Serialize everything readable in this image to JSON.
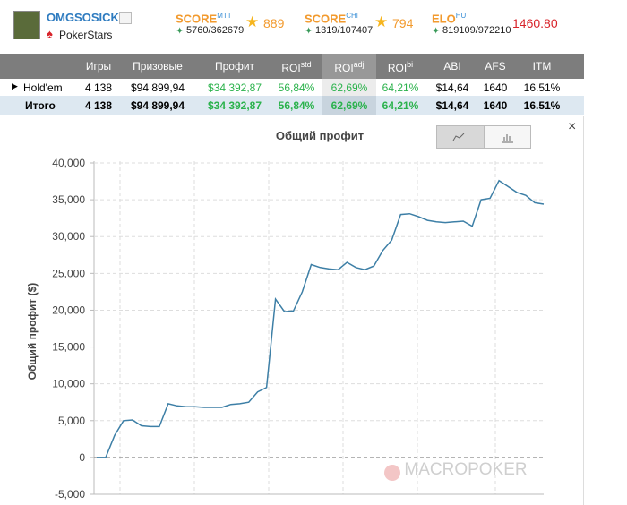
{
  "player": {
    "name": "OMGSOSICK",
    "site": "PokerStars"
  },
  "scores": [
    {
      "label": "SCORE",
      "sup": "MTT",
      "rank": "5760/362679",
      "value": "889"
    },
    {
      "label": "SCORE",
      "sup": "СНГ",
      "rank": "1319/107407",
      "value": "794"
    },
    {
      "label": "ELO",
      "sup": "HU",
      "rank": "819109/972210",
      "value": "1460.80"
    }
  ],
  "table": {
    "headers": [
      {
        "text": "Игры"
      },
      {
        "text": "Призовые"
      },
      {
        "text": "Профит"
      },
      {
        "text": "ROI",
        "sup": "std"
      },
      {
        "text": "ROI",
        "sup": "adj"
      },
      {
        "text": "ROI",
        "sup": "bi"
      },
      {
        "text": "ABI"
      },
      {
        "text": "AFS"
      },
      {
        "text": "ITM"
      }
    ],
    "rows": [
      [
        "Hold'em",
        "4 138",
        "$94 899,94",
        "$34 392,87",
        "56,84%",
        "62,69%",
        "64,21%",
        "$14,64",
        "1640",
        "16.51%"
      ],
      [
        "Итого",
        "4 138",
        "$94 899,94",
        "$34 392,87",
        "56,84%",
        "62,69%",
        "64,21%",
        "$14,64",
        "1640",
        "16.51%"
      ]
    ]
  },
  "chart_data": {
    "type": "line",
    "title": "Общий профит",
    "y_label": "Общий профит ($)",
    "values": [
      0,
      0,
      3000,
      5000,
      5100,
      4300,
      4200,
      4200,
      7300,
      7000,
      6900,
      6900,
      6800,
      6800,
      6800,
      7200,
      7300,
      7500,
      8900,
      9500,
      21500,
      19800,
      19900,
      22500,
      26200,
      25800,
      25600,
      25500,
      26500,
      25800,
      25500,
      26000,
      28100,
      29500,
      33000,
      33100,
      32700,
      32200,
      32000,
      31900,
      32000,
      32100,
      31400,
      35000,
      35200,
      37600,
      36800,
      36000,
      35600,
      34600,
      34400
    ],
    "color": "#3d7fa6",
    "ylim": [
      -5000,
      40000
    ],
    "yticks": [
      {
        "value": -5000,
        "label": "-5,000"
      },
      0,
      {
        "value": 5000,
        "label": "5,000"
      },
      {
        "value": 10000,
        "label": "10,000"
      },
      {
        "value": 15000,
        "label": "15,000"
      },
      {
        "value": 20000,
        "label": "20,000"
      },
      {
        "value": 25000,
        "label": "25,000"
      },
      {
        "value": 30000,
        "label": "30,000"
      },
      {
        "value": 35000,
        "label": "35,000"
      },
      {
        "value": 40000,
        "label": "40,000"
      }
    ],
    "grid": true
  },
  "watermark": "MACROPOKER"
}
